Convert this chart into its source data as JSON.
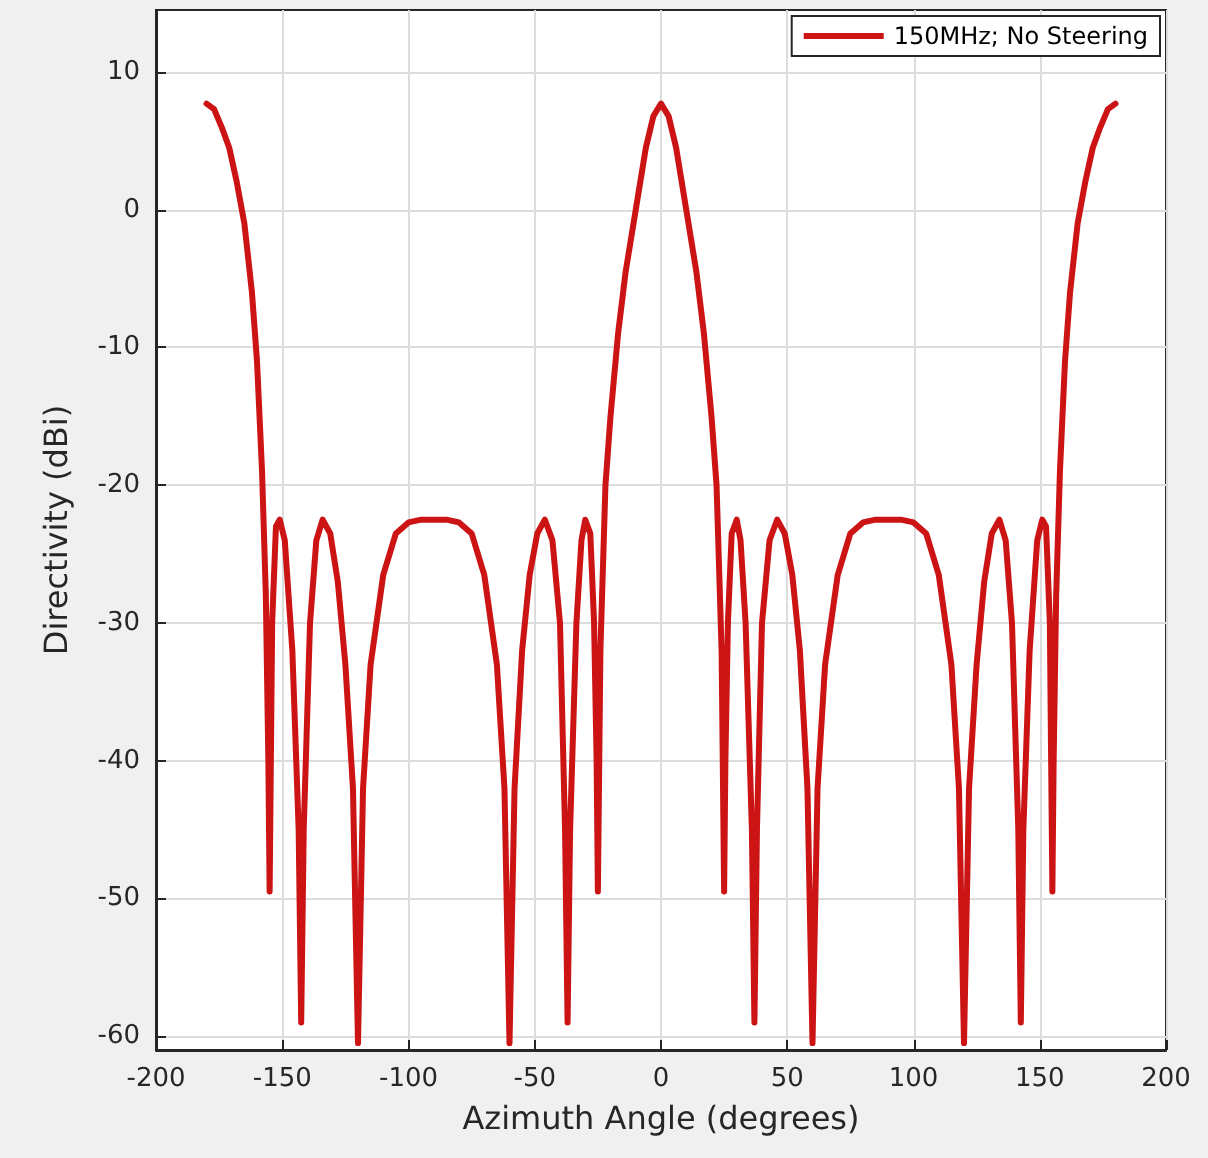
{
  "chart_data": {
    "type": "line",
    "xlabel": "Azimuth Angle (degrees)",
    "ylabel": "Directivity (dBi)",
    "xlim": [
      -200,
      200
    ],
    "xticks": [
      -200,
      -150,
      -100,
      -50,
      0,
      50,
      100,
      150,
      200
    ],
    "ylim": [
      -61,
      14.5
    ],
    "yticks": [
      -60,
      -50,
      -40,
      -30,
      -20,
      -10,
      0,
      10
    ],
    "grid": true,
    "legend": "top right",
    "marker": "none",
    "line_style": "solid",
    "x": [
      -180,
      -177,
      -174,
      -171,
      -168,
      -165,
      -162,
      -160,
      -158,
      -156.5,
      -155.5,
      -155,
      -154,
      -152.5,
      -151,
      -149,
      -146,
      -143.5,
      -142.5,
      -141.5,
      -139,
      -136.5,
      -134,
      -131,
      -128,
      -125,
      -122,
      -120,
      -118,
      -115,
      -110,
      -105,
      -100,
      -95,
      -90,
      -85,
      -80,
      -75,
      -70,
      -65,
      -62,
      -60,
      -58,
      -55,
      -52,
      -49,
      -46,
      -43,
      -40,
      -38,
      -37,
      -36,
      -33.5,
      -31.5,
      -30,
      -28,
      -26.5,
      -25.5,
      -25,
      -24,
      -22,
      -20,
      -17,
      -14,
      -10,
      -6,
      -3,
      0,
      3,
      6,
      10,
      14,
      17,
      20,
      22,
      24,
      25,
      25.5,
      26.5,
      28,
      30,
      31.5,
      33.5,
      36,
      37,
      38,
      40,
      43,
      46,
      49,
      52,
      55,
      58,
      60,
      62,
      65,
      70,
      75,
      80,
      85,
      90,
      95,
      100,
      105,
      110,
      115,
      118,
      120,
      122,
      125,
      128,
      131,
      134,
      136.5,
      139,
      141.5,
      142.5,
      143.5,
      146,
      149,
      151,
      152.5,
      154,
      155,
      155.5,
      156.5,
      158,
      160,
      162,
      165,
      168,
      171,
      174,
      177,
      180
    ],
    "series": [
      {
        "name": "150MHz; No Steering",
        "color": "#cc1414",
        "values": [
          7.7,
          7.3,
          6,
          4.5,
          2,
          -1,
          -6,
          -11,
          -19,
          -28,
          -40,
          -49.5,
          -30,
          -23,
          -22.5,
          -24,
          -32,
          -45,
          -59,
          -45,
          -30,
          -24,
          -22.5,
          -23.5,
          -27,
          -33,
          -42,
          -60.5,
          -42,
          -33,
          -26.5,
          -23.5,
          -22.7,
          -22.5,
          -22.5,
          -22.5,
          -22.7,
          -23.5,
          -26.5,
          -33,
          -42,
          -60.5,
          -42,
          -32,
          -26.5,
          -23.5,
          -22.5,
          -24,
          -30,
          -45,
          -59,
          -45,
          -30,
          -24,
          -22.5,
          -23.5,
          -30,
          -40,
          -49.5,
          -32,
          -20,
          -15,
          -9,
          -4.5,
          0,
          4.5,
          6.8,
          7.7,
          6.8,
          4.5,
          0,
          -4.5,
          -9,
          -15,
          -20,
          -32,
          -49.5,
          -40,
          -30,
          -23.5,
          -22.5,
          -24,
          -30,
          -45,
          -59,
          -45,
          -30,
          -24,
          -22.5,
          -23.5,
          -26.5,
          -32,
          -42,
          -60.5,
          -42,
          -33,
          -26.5,
          -23.5,
          -22.7,
          -22.5,
          -22.5,
          -22.5,
          -22.7,
          -23.5,
          -26.5,
          -33,
          -42,
          -60.5,
          -42,
          -33,
          -27,
          -23.5,
          -22.5,
          -24,
          -30,
          -45,
          -59,
          -45,
          -32,
          -24,
          -22.5,
          -23,
          -30,
          -49.5,
          -40,
          -28,
          -19,
          -11,
          -6,
          -1,
          2,
          4.5,
          6,
          7.3,
          7.7
        ]
      }
    ]
  }
}
